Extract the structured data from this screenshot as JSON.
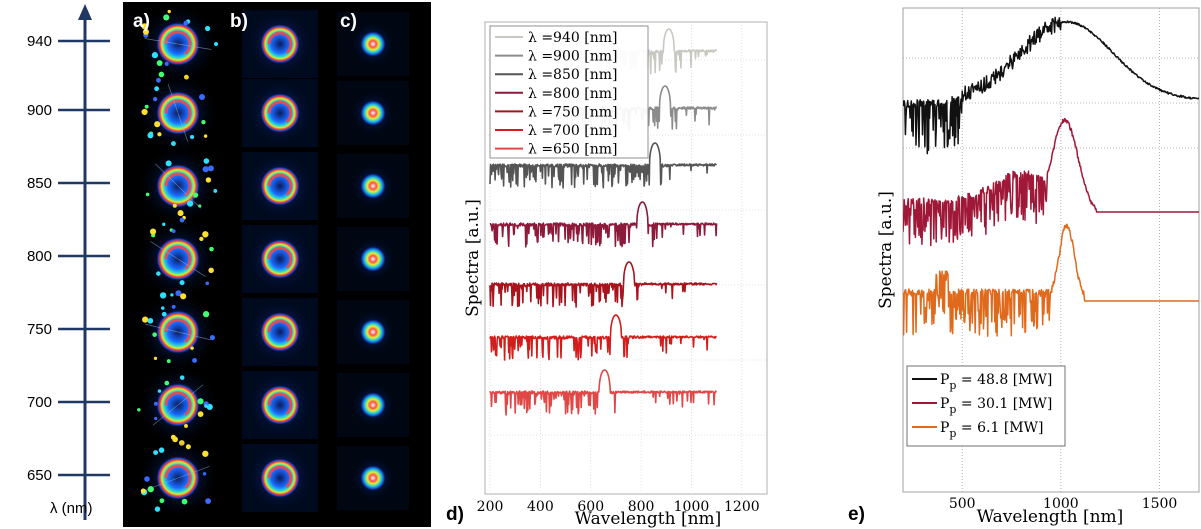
{
  "scale_axis": {
    "ticks": [
      "940",
      "900",
      "850",
      "800",
      "750",
      "700",
      "650"
    ],
    "label": "λ (nm)"
  },
  "panel_labels": {
    "a": "a)",
    "b": "b)",
    "c": "c)",
    "d": "d)",
    "e": "e)"
  },
  "chart_data": [
    {
      "type": "line",
      "panel": "d",
      "xlabel": "Wavelength [nm]",
      "ylabel": "Spectra [a.u.]",
      "xlim": [
        180,
        1300
      ],
      "xticks": [
        200,
        400,
        600,
        800,
        1000,
        1200
      ],
      "grid": true,
      "legend_position": "top-left",
      "series": [
        {
          "name": "λ =940 [nm]",
          "color": "#c8c8c0",
          "peak": 910,
          "x_start": 500,
          "x_end": 1100
        },
        {
          "name": "λ =900 [nm]",
          "color": "#8c8c8c",
          "peak": 895,
          "x_start": 500,
          "x_end": 1100
        },
        {
          "name": "λ =850 [nm]",
          "color": "#555555",
          "peak": 855,
          "x_start": 200,
          "x_end": 1100
        },
        {
          "name": "λ =800 [nm]",
          "color": "#8c1a3a",
          "peak": 805,
          "x_start": 200,
          "x_end": 1100
        },
        {
          "name": "λ =750 [nm]",
          "color": "#a8141e",
          "peak": 752,
          "x_start": 200,
          "x_end": 1100
        },
        {
          "name": "λ =700 [nm]",
          "color": "#d41c1c",
          "peak": 700,
          "x_start": 200,
          "x_end": 1100
        },
        {
          "name": "λ =650 [nm]",
          "color": "#e04848",
          "peak": 655,
          "x_start": 200,
          "x_end": 1100
        }
      ]
    },
    {
      "type": "line",
      "panel": "e",
      "xlabel": "Wavelength [nm]",
      "ylabel": "Spectra [a.u.]",
      "xlim": [
        200,
        1700
      ],
      "xticks": [
        500,
        1000,
        1500
      ],
      "grid": true,
      "legend_position": "bottom-left",
      "series": [
        {
          "name_prefix": "P",
          "name_sub": "p",
          "name_value": " = 48.8 [MW]",
          "color": "#111111"
        },
        {
          "name_prefix": "P",
          "name_sub": "p",
          "name_value": " = 30.1 [MW]",
          "color": "#a01838"
        },
        {
          "name_prefix": "P",
          "name_sub": "p",
          "name_value": " = 6.1 [MW]",
          "color": "#e06a1c"
        }
      ]
    }
  ]
}
